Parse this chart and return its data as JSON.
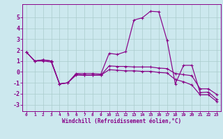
{
  "xlabel": "Windchill (Refroidissement éolien,°C)",
  "bg_color": "#cce8ee",
  "grid_color": "#aacccc",
  "line_color": "#880088",
  "xlim": [
    -0.5,
    23.5
  ],
  "ylim": [
    -3.6,
    6.2
  ],
  "xticks": [
    0,
    1,
    2,
    3,
    4,
    5,
    6,
    7,
    8,
    9,
    10,
    11,
    12,
    13,
    14,
    15,
    16,
    17,
    18,
    19,
    20,
    21,
    22,
    23
  ],
  "yticks": [
    -3,
    -2,
    -1,
    0,
    1,
    2,
    3,
    4,
    5
  ],
  "series1_x": [
    0,
    1,
    2,
    3,
    4,
    5,
    6,
    7,
    8,
    9,
    10,
    11,
    12,
    13,
    14,
    15,
    16,
    17,
    18,
    19,
    20,
    21,
    22,
    23
  ],
  "series1_y": [
    1.8,
    1.0,
    1.1,
    1.0,
    -1.1,
    -1.0,
    -0.15,
    -0.15,
    -0.15,
    -0.2,
    1.7,
    1.6,
    1.85,
    4.75,
    4.95,
    5.55,
    5.5,
    2.9,
    -1.1,
    0.6,
    0.6,
    -1.9,
    -1.85,
    -2.5
  ],
  "series2_x": [
    0,
    1,
    2,
    3,
    4,
    5,
    6,
    7,
    8,
    9,
    10,
    11,
    12,
    13,
    14,
    15,
    16,
    17,
    18,
    19,
    20,
    21,
    22,
    23
  ],
  "series2_y": [
    1.8,
    1.0,
    1.1,
    1.0,
    -1.1,
    -1.0,
    -0.2,
    -0.3,
    -0.3,
    -0.3,
    0.55,
    0.5,
    0.5,
    0.45,
    0.45,
    0.45,
    0.35,
    0.3,
    -0.15,
    -0.25,
    -0.35,
    -1.55,
    -1.55,
    -2.05
  ],
  "series3_x": [
    0,
    1,
    2,
    3,
    4,
    5,
    6,
    7,
    8,
    9,
    10,
    11,
    12,
    13,
    14,
    15,
    16,
    17,
    18,
    19,
    20,
    21,
    22,
    23
  ],
  "series3_y": [
    1.8,
    1.0,
    1.0,
    0.9,
    -1.1,
    -1.0,
    -0.3,
    -0.3,
    -0.3,
    -0.3,
    0.2,
    0.15,
    0.1,
    0.1,
    0.05,
    0.05,
    -0.05,
    -0.1,
    -0.7,
    -0.9,
    -1.2,
    -2.1,
    -2.1,
    -2.7
  ]
}
